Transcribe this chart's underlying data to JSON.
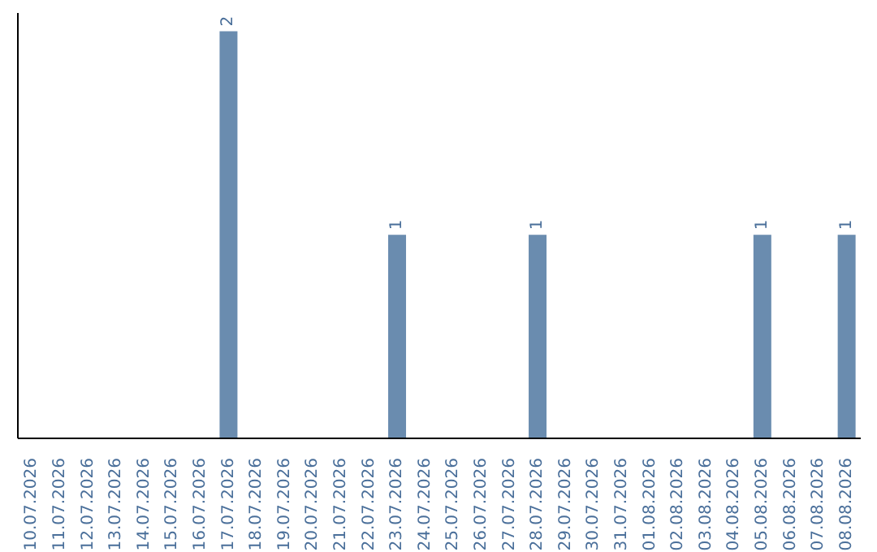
{
  "chart_data": {
    "type": "bar",
    "categories": [
      "10.07.2026",
      "11.07.2026",
      "12.07.2026",
      "13.07.2026",
      "14.07.2026",
      "15.07.2026",
      "16.07.2026",
      "17.07.2026",
      "18.07.2026",
      "19.07.2026",
      "20.07.2026",
      "21.07.2026",
      "22.07.2026",
      "23.07.2026",
      "24.07.2026",
      "25.07.2026",
      "26.07.2026",
      "27.07.2026",
      "28.07.2026",
      "29.07.2026",
      "30.07.2026",
      "31.07.2026",
      "01.08.2026",
      "02.08.2026",
      "03.08.2026",
      "04.08.2026",
      "05.08.2026",
      "06.08.2026",
      "07.08.2026",
      "08.08.2026"
    ],
    "values": [
      0,
      0,
      0,
      0,
      0,
      0,
      0,
      2,
      0,
      0,
      0,
      0,
      0,
      1,
      0,
      0,
      0,
      0,
      1,
      0,
      0,
      0,
      0,
      0,
      0,
      0,
      1,
      0,
      0,
      1
    ],
    "value_labels": [
      null,
      null,
      null,
      null,
      null,
      null,
      null,
      "2",
      null,
      null,
      null,
      null,
      null,
      "1",
      null,
      null,
      null,
      null,
      "1",
      null,
      null,
      null,
      null,
      null,
      null,
      null,
      "1",
      null,
      null,
      "1"
    ],
    "color": "#6a8caf",
    "tick_labels": "x",
    "grid": false,
    "legend": false
  }
}
